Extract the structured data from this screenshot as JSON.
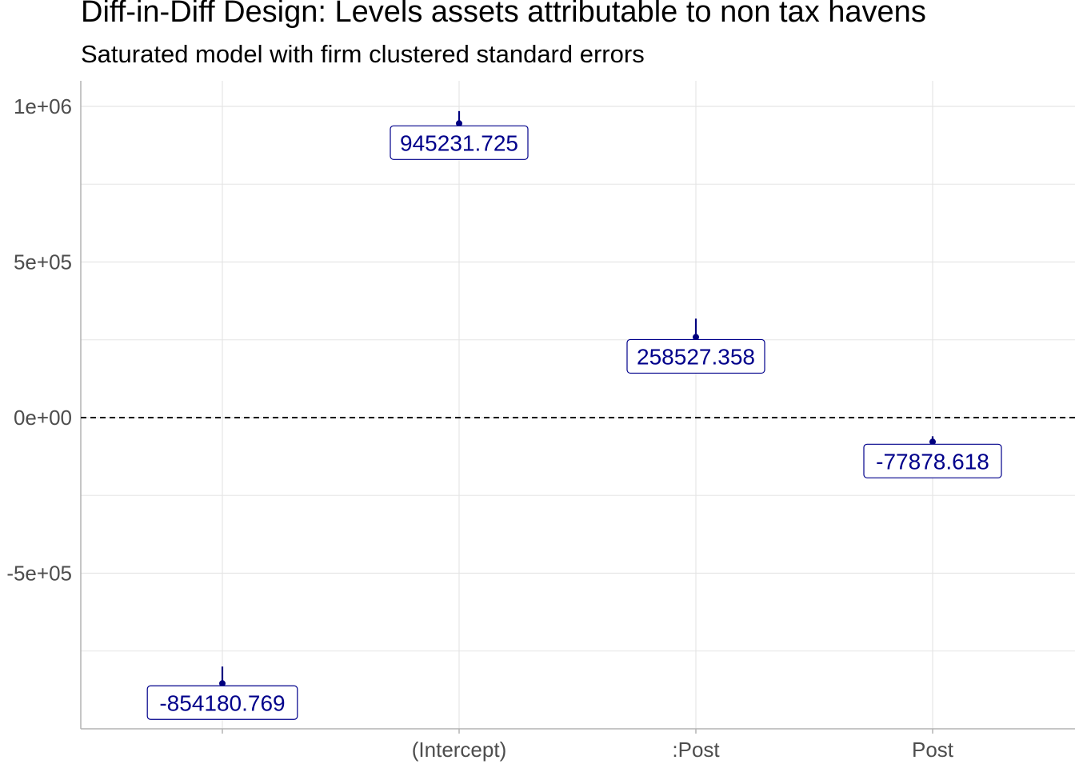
{
  "title": "Diff-in-Diff Design: Levels assets attributable to non tax havens",
  "subtitle": "Saturated model with firm clustered standard errors",
  "colors": {
    "point": "#00007F",
    "label_text": "#00008B",
    "grid": "#e5e5e5",
    "axis": "#b3b3b3",
    "zero_line": "#000000"
  },
  "chart_data": {
    "type": "scatter",
    "title": "Diff-in-Diff Design: Levels assets attributable to non tax havens",
    "subtitle": "Saturated model with firm clustered standard errors",
    "xlabel": "",
    "ylabel": "",
    "categories": [
      "",
      "(Intercept)",
      ":Post",
      "Post"
    ],
    "points": [
      {
        "category": "",
        "estimate": -854180.769,
        "ci_low": -908000,
        "ci_high": -800000,
        "label": "-854180.769"
      },
      {
        "category": "(Intercept)",
        "estimate": 945231.725,
        "ci_low": 925000,
        "ci_high": 985000,
        "label": "945231.725"
      },
      {
        "category": ":Post",
        "estimate": 258527.358,
        "ci_low": 205000,
        "ci_high": 318000,
        "label": "258527.358"
      },
      {
        "category": "Post",
        "estimate": -77878.618,
        "ci_low": -100000,
        "ci_high": -60000,
        "label": "-77878.618"
      }
    ],
    "ylim": [
      -995000,
      1080000
    ],
    "y_ticks": [
      1000000,
      500000,
      0,
      -500000
    ],
    "y_tick_labels": [
      "1e+06",
      "5e+05",
      "0e+00",
      "-5e+05"
    ],
    "reference_line": 0,
    "reference_line_style": "dashed",
    "grid": true
  }
}
